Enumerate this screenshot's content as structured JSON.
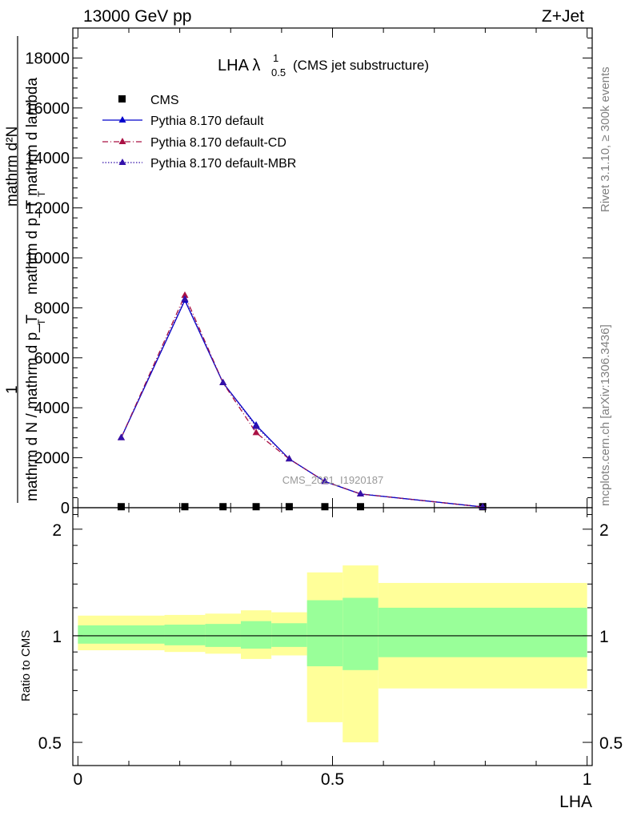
{
  "header": {
    "left": "13000 GeV pp",
    "right": "Z+Jet"
  },
  "side_labels": {
    "rivet": "Rivet 3.1.10, ≥ 300k events",
    "mcplots": "mcplots.cern.ch [arXiv:1306.3436]"
  },
  "watermark": "CMS_2021_I1920187",
  "chart_data": [
    {
      "type": "line",
      "title_main": "LHA λ",
      "title_sup": "1",
      "title_sub": "0.5",
      "title_rest": "(CMS jet substructure)",
      "ylabel_top": "mathrm d²N",
      "ylabel_top2": "mathrm d p_T mathrm d lambda",
      "ylabel_top2_sub": "T",
      "ylabel_one": "1",
      "ylabel_bottom": "mathrm d N / mathrm d p_T",
      "ylabel_bottom_sub": "T",
      "ylim": [
        0,
        19200
      ],
      "yticks": [
        0,
        2000,
        4000,
        6000,
        8000,
        10000,
        12000,
        14000,
        16000,
        18000
      ],
      "ytick_labels": [
        "0",
        "2000",
        "4000",
        "6000",
        "8000",
        "10000",
        "12000",
        "14000",
        "16000",
        "18000"
      ],
      "xlim": [
        -0.01,
        1.01
      ],
      "legend_position": "top-left",
      "series": [
        {
          "name": "CMS",
          "color": "#000000",
          "marker": "square",
          "x": [
            0.085,
            0.21,
            0.285,
            0.35,
            0.415,
            0.485,
            0.555,
            0.795
          ],
          "y": [
            40,
            40,
            40,
            40,
            40,
            40,
            40,
            40
          ]
        },
        {
          "name": "Pythia 8.170 default",
          "color": "#0000cc",
          "marker": "triangle",
          "style": "solid",
          "x": [
            0.085,
            0.21,
            0.285,
            0.35,
            0.415,
            0.485,
            0.555,
            0.795
          ],
          "y": [
            2800,
            8300,
            5000,
            3300,
            1950,
            1050,
            550,
            30
          ]
        },
        {
          "name": "Pythia 8.170 default-CD",
          "color": "#aa1144",
          "marker": "triangle",
          "style": "dashdot",
          "x": [
            0.085,
            0.21,
            0.285,
            0.35,
            0.415,
            0.485,
            0.555,
            0.795
          ],
          "y": [
            2800,
            8500,
            5000,
            3000,
            1950,
            1050,
            550,
            30
          ]
        },
        {
          "name": "Pythia 8.170 default-MBR",
          "color": "#3311aa",
          "marker": "triangle",
          "style": "dotted",
          "x": [
            0.085,
            0.21,
            0.285,
            0.35,
            0.415,
            0.485,
            0.555,
            0.795
          ],
          "y": [
            2800,
            8350,
            5000,
            3250,
            1950,
            1050,
            550,
            30
          ]
        }
      ]
    },
    {
      "type": "area",
      "ylabel": "Ratio to CMS",
      "xlabel": "LHA",
      "ylim": [
        0.43,
        2.3
      ],
      "ylog": true,
      "yticks": [
        0.5,
        1,
        2
      ],
      "ytick_labels": [
        "0.5",
        "1",
        "2"
      ],
      "xlim": [
        -0.01,
        1.01
      ],
      "xticks": [
        0,
        0.5,
        1
      ],
      "xtick_labels": [
        "0",
        "0.5",
        "1"
      ],
      "reference_line": 1,
      "band_colors": {
        "inner": "#99ff99",
        "outer": "#ffff99"
      },
      "bins": [
        {
          "x0": 0.0,
          "x1": 0.17,
          "inner": [
            0.95,
            1.07
          ],
          "outer": [
            0.91,
            1.14
          ]
        },
        {
          "x0": 0.17,
          "x1": 0.25,
          "inner": [
            0.94,
            1.075
          ],
          "outer": [
            0.9,
            1.145
          ]
        },
        {
          "x0": 0.25,
          "x1": 0.32,
          "inner": [
            0.93,
            1.08
          ],
          "outer": [
            0.89,
            1.155
          ]
        },
        {
          "x0": 0.32,
          "x1": 0.38,
          "inner": [
            0.92,
            1.1
          ],
          "outer": [
            0.86,
            1.18
          ]
        },
        {
          "x0": 0.38,
          "x1": 0.45,
          "inner": [
            0.93,
            1.085
          ],
          "outer": [
            0.88,
            1.165
          ]
        },
        {
          "x0": 0.45,
          "x1": 0.52,
          "inner": [
            0.82,
            1.26
          ],
          "outer": [
            0.57,
            1.51
          ]
        },
        {
          "x0": 0.52,
          "x1": 0.59,
          "inner": [
            0.8,
            1.28
          ],
          "outer": [
            0.5,
            1.58
          ]
        },
        {
          "x0": 0.59,
          "x1": 1.0,
          "inner": [
            0.87,
            1.2
          ],
          "outer": [
            0.71,
            1.41
          ]
        }
      ]
    }
  ]
}
